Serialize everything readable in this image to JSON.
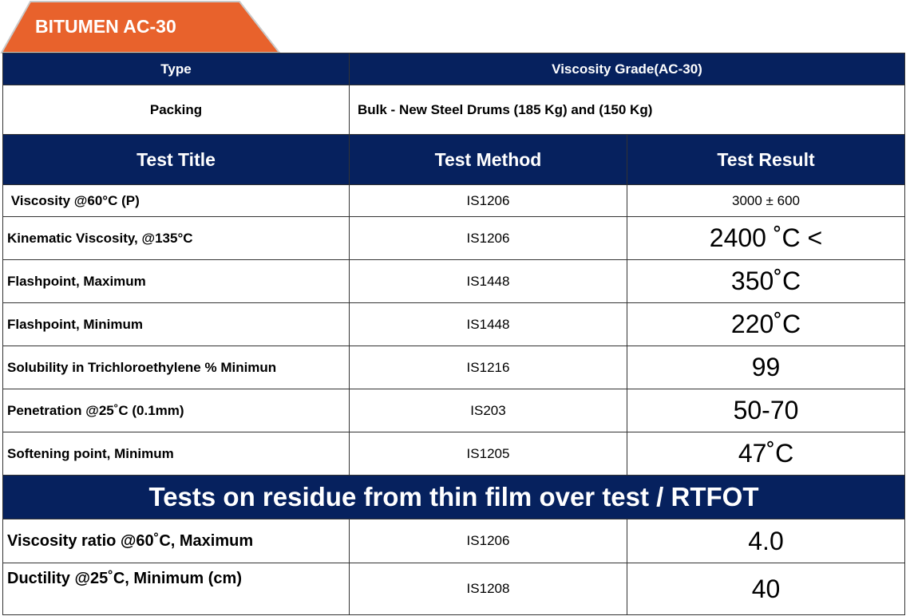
{
  "title": "BITUMEN AC-30",
  "info": [
    {
      "label": "Type",
      "value": "Viscosity Grade(AC-30)"
    },
    {
      "label": "Packing",
      "value": "Bulk - New Steel Drums (185 Kg) and (150 Kg)"
    }
  ],
  "columns": [
    "Test Title",
    "Test Method",
    "Test Result"
  ],
  "rows": [
    [
      " Viscosity @60°C (P)",
      "IS1206",
      "3000 ± 600"
    ],
    [
      "Kinematic Viscosity, @135°C",
      "IS1206",
      "2400 ˚C <"
    ],
    [
      "Flashpoint, Maximum",
      "IS1448",
      "350˚C"
    ],
    [
      "Flashpoint, Minimum",
      "IS1448",
      "220˚C"
    ],
    [
      "Solubility in Trichloroethylene % Minimun",
      "IS1216",
      "99"
    ],
    [
      "Penetration @25˚C (0.1mm)",
      "IS203",
      "50-70"
    ],
    [
      "Softening point, Minimum",
      "IS1205",
      "47˚C"
    ]
  ],
  "section": "Tests on residue from thin film over test / RTFOT",
  "residue_rows": [
    [
      "Viscosity ratio @60˚C, Maximum",
      "IS1206",
      "4.0"
    ],
    [
      "Ductility @25˚C, Minimum (cm)",
      "IS1208",
      "40"
    ]
  ]
}
